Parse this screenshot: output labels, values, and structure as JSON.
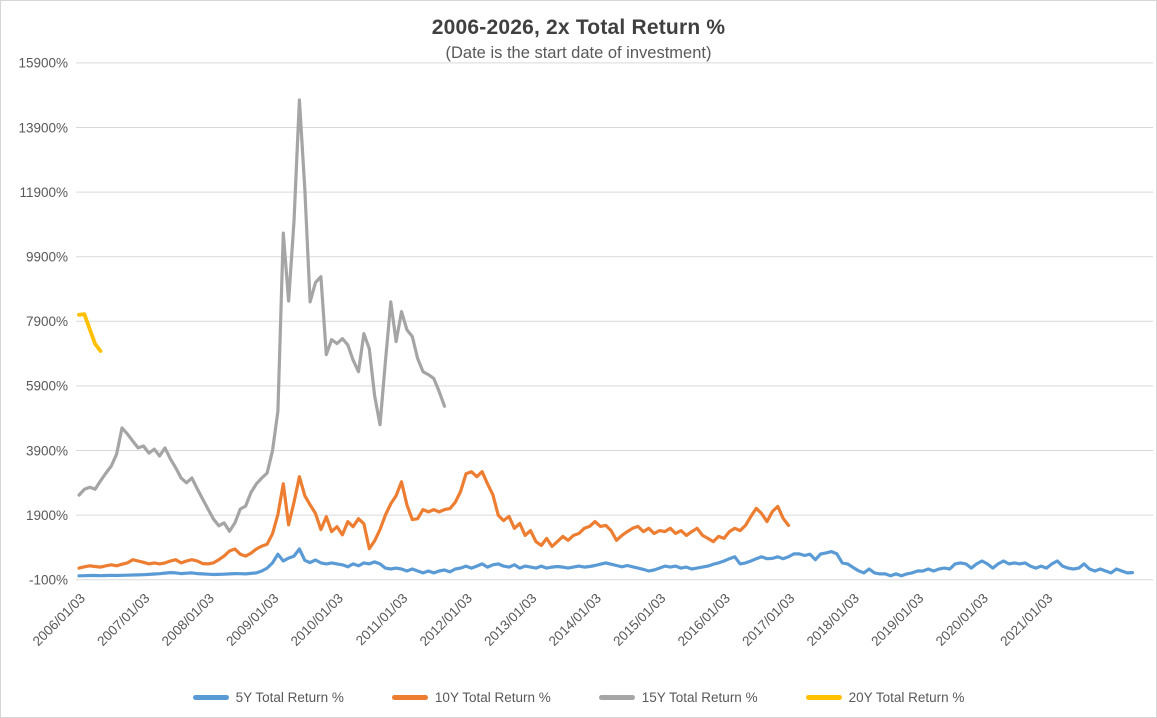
{
  "chart_data": {
    "type": "line",
    "title": "2006-2026, 2x Total Return %",
    "subtitle": "(Date is the start date of investment)",
    "grid": "horizontal",
    "legend_position": "bottom",
    "background": "#FFFFFF",
    "gridline_color": "#D9D9D9",
    "axis_text_color": "#595959",
    "title_color": "#404040",
    "x_axis": {
      "unit": "start date, monthly points beginning 2006/01",
      "tick_labels": [
        "2006/01/03",
        "2007/01/03",
        "2008/01/03",
        "2009/01/03",
        "2010/01/03",
        "2011/01/03",
        "2012/01/03",
        "2013/01/03",
        "2014/01/03",
        "2015/01/03",
        "2016/01/03",
        "2017/01/03",
        "2018/01/03",
        "2019/01/03",
        "2020/01/03",
        "2021/01/03"
      ],
      "tick_label_rotation_deg": 45
    },
    "y_axis": {
      "unit": "%",
      "tick_labels": [
        "15900%",
        "13900%",
        "11900%",
        "9900%",
        "7900%",
        "5900%",
        "3900%",
        "1900%",
        "-100%"
      ],
      "tick_values": [
        15900,
        13900,
        11900,
        9900,
        7900,
        5900,
        3900,
        1900,
        -100
      ],
      "min": -100,
      "max": 15900,
      "grid_step": 2000
    },
    "series": [
      {
        "name": "5Y Total Return %",
        "color": "#5B9BD5",
        "start_month": 0,
        "values": [
          20,
          25,
          30,
          30,
          25,
          30,
          35,
          30,
          35,
          40,
          45,
          50,
          55,
          65,
          75,
          85,
          105,
          120,
          110,
          90,
          100,
          110,
          90,
          80,
          70,
          60,
          65,
          70,
          80,
          90,
          85,
          80,
          95,
          110,
          170,
          260,
          420,
          690,
          480,
          570,
          630,
          850,
          500,
          430,
          510,
          420,
          390,
          420,
          390,
          360,
          300,
          390,
          330,
          420,
          390,
          450,
          390,
          260,
          230,
          260,
          230,
          170,
          230,
          170,
          110,
          170,
          110,
          170,
          200,
          140,
          230,
          260,
          320,
          260,
          320,
          390,
          290,
          360,
          390,
          320,
          290,
          360,
          260,
          320,
          290,
          260,
          320,
          260,
          290,
          310,
          290,
          260,
          290,
          320,
          290,
          310,
          340,
          380,
          420,
          380,
          340,
          300,
          340,
          300,
          260,
          220,
          170,
          200,
          260,
          320,
          290,
          320,
          260,
          290,
          230,
          260,
          290,
          320,
          380,
          420,
          480,
          550,
          610,
          390,
          420,
          480,
          550,
          610,
          550,
          560,
          610,
          550,
          610,
          700,
          700,
          650,
          690,
          520,
          700,
          730,
          770,
          700,
          420,
          390,
          280,
          180,
          110,
          230,
          110,
          80,
          80,
          20,
          80,
          20,
          80,
          110,
          170,
          170,
          230,
          170,
          230,
          260,
          230,
          390,
          420,
          390,
          260,
          390,
          480,
          390,
          260,
          390,
          480,
          390,
          420,
          390,
          420,
          320,
          260,
          320,
          260,
          390,
          480,
          320,
          260,
          230,
          260,
          390,
          230,
          170,
          230,
          170,
          110,
          230,
          170,
          110,
          120
        ]
      },
      {
        "name": "10Y Total Return %",
        "color": "#ED7D31",
        "start_month": 0,
        "values": [
          260,
          300,
          330,
          310,
          290,
          330,
          360,
          330,
          380,
          420,
          520,
          480,
          440,
          390,
          420,
          390,
          420,
          480,
          520,
          420,
          480,
          520,
          480,
          400,
          390,
          420,
          520,
          630,
          790,
          850,
          690,
          630,
          720,
          850,
          940,
          1000,
          1320,
          1920,
          2870,
          1600,
          2300,
          3090,
          2500,
          2220,
          1950,
          1450,
          1850,
          1390,
          1540,
          1290,
          1700,
          1540,
          1790,
          1630,
          860,
          1100,
          1450,
          1900,
          2250,
          2500,
          2930,
          2220,
          1760,
          1790,
          2070,
          2000,
          2070,
          2000,
          2070,
          2100,
          2300,
          2630,
          3180,
          3245,
          3090,
          3245,
          2870,
          2530,
          1890,
          1730,
          1860,
          1490,
          1640,
          1270,
          1420,
          1080,
          960,
          1180,
          930,
          1080,
          1240,
          1120,
          1270,
          1330,
          1490,
          1550,
          1700,
          1550,
          1580,
          1420,
          1120,
          1270,
          1390,
          1490,
          1550,
          1390,
          1490,
          1330,
          1420,
          1390,
          1490,
          1330,
          1420,
          1270,
          1390,
          1490,
          1270,
          1180,
          1080,
          1240,
          1180,
          1390,
          1490,
          1420,
          1580,
          1860,
          2110,
          1950,
          1700,
          2010,
          2170,
          1800,
          1580
        ]
      },
      {
        "name": "15Y Total Return %",
        "color": "#A5A5A5",
        "start_month": 0,
        "values": [
          2520,
          2700,
          2760,
          2700,
          2960,
          3200,
          3420,
          3790,
          4600,
          4410,
          4190,
          3980,
          4040,
          3820,
          3940,
          3730,
          3980,
          3640,
          3360,
          3050,
          2900,
          3050,
          2710,
          2400,
          2090,
          1780,
          1570,
          1660,
          1400,
          1660,
          2090,
          2180,
          2600,
          2870,
          3050,
          3200,
          3890,
          5120,
          10630,
          8530,
          11000,
          14750,
          12000,
          8500,
          9100,
          9280,
          6870,
          7330,
          7210,
          7360,
          7170,
          6700,
          6340,
          7520,
          7050,
          5600,
          4700,
          6650,
          8500,
          7270,
          8200,
          7640,
          7430,
          6750,
          6340,
          6250,
          6130,
          5730,
          5270
        ]
      },
      {
        "name": "20Y Total Return %",
        "color": "#FFC000",
        "start_month": 0,
        "values": [
          8100,
          8120,
          7650,
          7200,
          6980
        ]
      }
    ]
  }
}
